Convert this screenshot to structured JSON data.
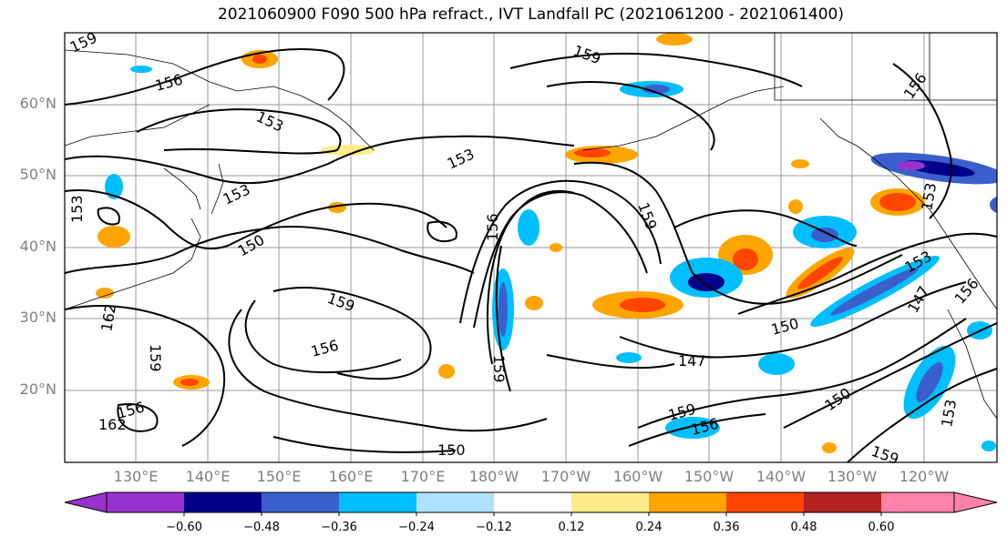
{
  "title": "2021060900 F090 500 hPa refract., IVT Landfall PC (2021061200 - 2021061400)",
  "lat_labels": [
    "60°N",
    "50°N",
    "40°N",
    "30°N",
    "20°N"
  ],
  "lon_labels": [
    "130°E",
    "140°E",
    "150°E",
    "160°E",
    "170°E",
    "180°W",
    "170°W",
    "160°W",
    "150°W",
    "140°W",
    "130°W",
    "120°W"
  ],
  "contour_labels": [
    "159",
    "156",
    "153",
    "153",
    "153",
    "150",
    "156",
    "159",
    "159",
    "156",
    "153",
    "150",
    "147",
    "147",
    "150",
    "153",
    "156",
    "159",
    "156",
    "159",
    "150",
    "162",
    "159",
    "153",
    "156",
    "162",
    "159",
    "153",
    "159",
    "156"
  ],
  "colorbar": {
    "ticks": [
      "−0.60",
      "−0.48",
      "−0.36",
      "−0.24",
      "−0.12",
      "0.12",
      "0.24",
      "0.36",
      "0.48",
      "0.60"
    ],
    "colors": [
      "#9932cc",
      "#00008b",
      "#3a5fcd",
      "#00bfff",
      "#b0e2ff",
      "#ffffff",
      "#ffec8b",
      "#ffa500",
      "#ff4500",
      "#b22222",
      "#ff82ab"
    ]
  }
}
